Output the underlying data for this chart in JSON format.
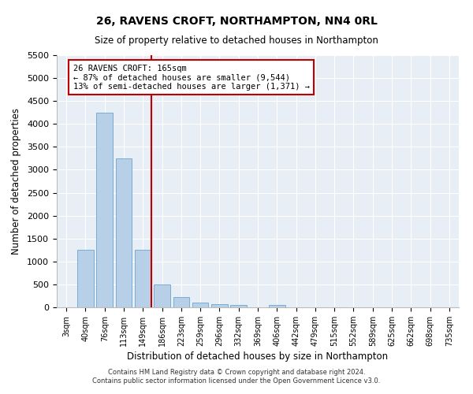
{
  "title": "26, RAVENS CROFT, NORTHAMPTON, NN4 0RL",
  "subtitle": "Size of property relative to detached houses in Northampton",
  "xlabel": "Distribution of detached houses by size in Northampton",
  "ylabel": "Number of detached properties",
  "categories": [
    "3sqm",
    "40sqm",
    "76sqm",
    "113sqm",
    "149sqm",
    "186sqm",
    "223sqm",
    "259sqm",
    "296sqm",
    "332sqm",
    "369sqm",
    "406sqm",
    "442sqm",
    "479sqm",
    "515sqm",
    "552sqm",
    "589sqm",
    "625sqm",
    "662sqm",
    "698sqm",
    "735sqm"
  ],
  "values": [
    0,
    1250,
    4250,
    3250,
    1250,
    500,
    225,
    100,
    75,
    50,
    0,
    50,
    0,
    0,
    0,
    0,
    0,
    0,
    0,
    0,
    0
  ],
  "bar_color": "#b8cfe8",
  "bar_edge_color": "#7aadd4",
  "background_color": "#e8eef5",
  "ylim": [
    0,
    5500
  ],
  "yticks": [
    0,
    500,
    1000,
    1500,
    2000,
    2500,
    3000,
    3500,
    4000,
    4500,
    5000,
    5500
  ],
  "vline_color": "#c00000",
  "annotation_title": "26 RAVENS CROFT: 165sqm",
  "annotation_line1": "← 87% of detached houses are smaller (9,544)",
  "annotation_line2": "13% of semi-detached houses are larger (1,371) →",
  "annotation_box_color": "#c00000",
  "footer_line1": "Contains HM Land Registry data © Crown copyright and database right 2024.",
  "footer_line2": "Contains public sector information licensed under the Open Government Licence v3.0."
}
